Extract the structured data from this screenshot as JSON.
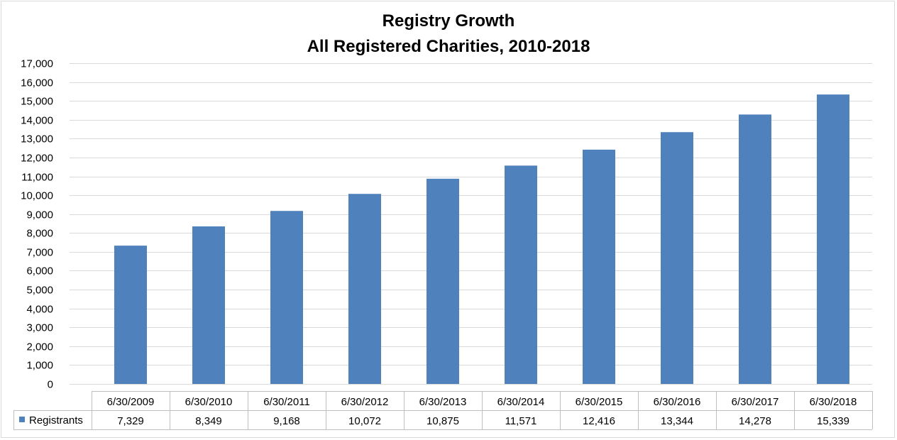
{
  "chart_data": {
    "type": "bar",
    "title": "Registry Growth",
    "subtitle": "All Registered Charities, 2010-2018",
    "categories": [
      "6/30/2009",
      "6/30/2010",
      "6/30/2011",
      "6/30/2012",
      "6/30/2013",
      "6/30/2014",
      "6/30/2015",
      "6/30/2016",
      "6/30/2017",
      "6/30/2018"
    ],
    "series": [
      {
        "name": "Registrants",
        "values": [
          7329,
          8349,
          9168,
          10072,
          10875,
          11571,
          12416,
          13344,
          14278,
          15339
        ],
        "color": "#4f81bd"
      }
    ],
    "value_labels": [
      "7,329",
      "8,349",
      "9,168",
      "10,072",
      "10,875",
      "11,571",
      "12,416",
      "13,344",
      "14,278",
      "15,339"
    ],
    "ylim": [
      0,
      17000
    ],
    "y_ticks": [
      0,
      1000,
      2000,
      3000,
      4000,
      5000,
      6000,
      7000,
      8000,
      9000,
      10000,
      11000,
      12000,
      13000,
      14000,
      15000,
      16000,
      17000
    ],
    "y_tick_labels": [
      "0",
      "1,000",
      "2,000",
      "3,000",
      "4,000",
      "5,000",
      "6,000",
      "7,000",
      "8,000",
      "9,000",
      "10,000",
      "11,000",
      "12,000",
      "13,000",
      "14,000",
      "15,000",
      "16,000",
      "17,000"
    ],
    "grid": true,
    "legend_placement": "data-table",
    "colors": {
      "gridline": "#d9d9d9",
      "table_border": "#bfbfbf",
      "bar": "#4f81bd"
    }
  }
}
